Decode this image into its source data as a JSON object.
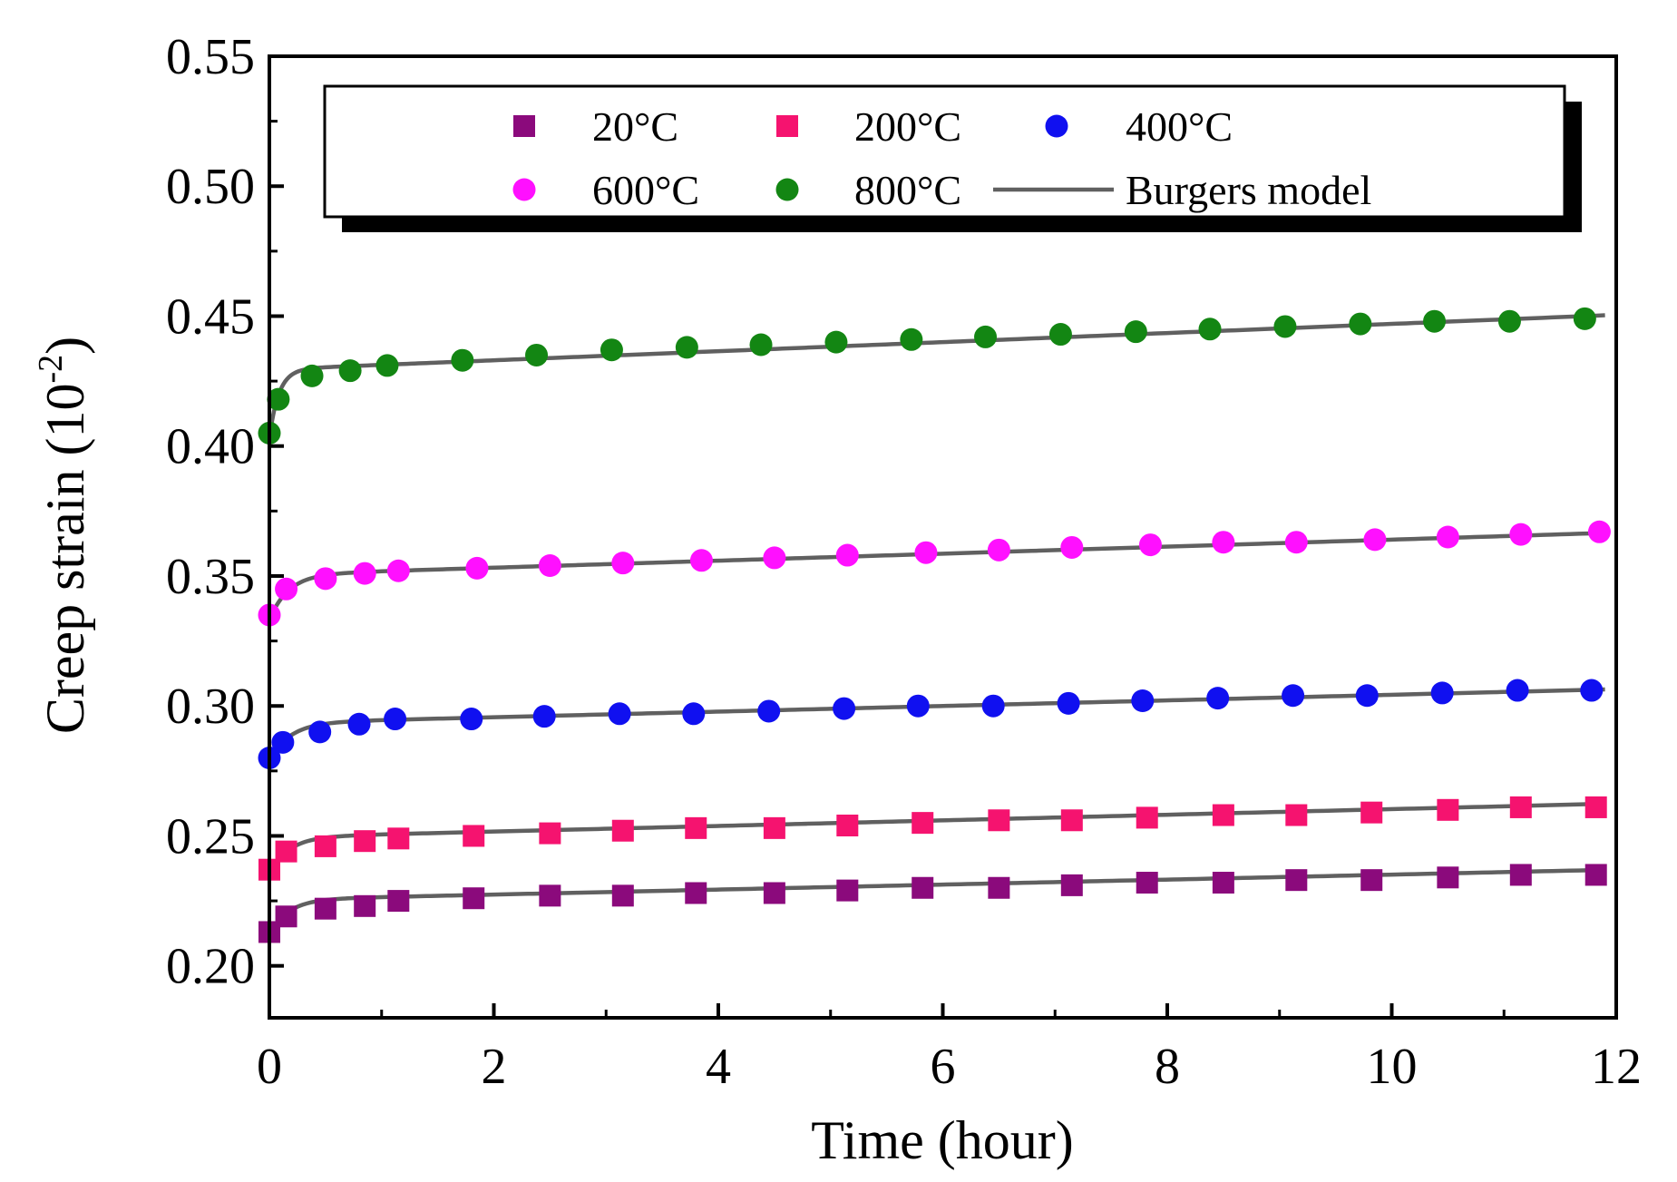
{
  "chart_data": {
    "type": "scatter",
    "title": "",
    "xlabel": "Time (hour)",
    "ylabel_main": "Creep strain (10",
    "ylabel_sup": "-2",
    "ylabel_close": ")",
    "xlim": [
      0,
      12
    ],
    "ylim": [
      0.18,
      0.55
    ],
    "xticks": [
      0,
      2,
      4,
      6,
      8,
      10,
      12
    ],
    "xtick_labels": [
      "0",
      "2",
      "4",
      "6",
      "8",
      "10",
      "12"
    ],
    "yticks": [
      0.2,
      0.25,
      0.3,
      0.35,
      0.4,
      0.45,
      0.5,
      0.55
    ],
    "ytick_labels": [
      "0.20",
      "0.25",
      "0.30",
      "0.35",
      "0.40",
      "0.45",
      "0.50",
      "0.55"
    ],
    "legend_position": "top",
    "fit_label": "Burgers model",
    "fit_color": "#606060",
    "series": [
      {
        "name": "20°C",
        "marker": "square",
        "color": "#8b0a7c",
        "x": [
          0.0,
          0.15,
          0.5,
          0.85,
          1.15,
          1.82,
          2.5,
          3.15,
          3.8,
          4.5,
          5.15,
          5.82,
          6.5,
          7.15,
          7.82,
          8.5,
          9.15,
          9.82,
          10.5,
          11.15,
          11.82
        ],
        "y": [
          0.213,
          0.219,
          0.222,
          0.223,
          0.225,
          0.226,
          0.227,
          0.227,
          0.228,
          0.228,
          0.229,
          0.23,
          0.23,
          0.231,
          0.232,
          0.232,
          0.233,
          0.233,
          0.234,
          0.235,
          0.235
        ],
        "fit": {
          "e0": 0.212,
          "a": 0.0135,
          "k": 6,
          "b": 0.00096
        }
      },
      {
        "name": "200°C",
        "marker": "square",
        "color": "#f5136f",
        "x": [
          0.0,
          0.15,
          0.5,
          0.85,
          1.15,
          1.82,
          2.5,
          3.15,
          3.8,
          4.5,
          5.15,
          5.82,
          6.5,
          7.15,
          7.82,
          8.5,
          9.15,
          9.82,
          10.5,
          11.15,
          11.82
        ],
        "y": [
          0.237,
          0.244,
          0.246,
          0.248,
          0.249,
          0.25,
          0.251,
          0.252,
          0.253,
          0.253,
          0.254,
          0.255,
          0.256,
          0.256,
          0.257,
          0.258,
          0.258,
          0.259,
          0.26,
          0.261,
          0.261
        ],
        "fit": {
          "e0": 0.235,
          "a": 0.0145,
          "k": 6,
          "b": 0.00108
        }
      },
      {
        "name": "400°C",
        "marker": "circle",
        "color": "#1010f0",
        "x": [
          0.0,
          0.12,
          0.45,
          0.8,
          1.12,
          1.8,
          2.45,
          3.12,
          3.78,
          4.45,
          5.12,
          5.78,
          6.45,
          7.12,
          7.78,
          8.45,
          9.12,
          9.78,
          10.45,
          11.12,
          11.78
        ],
        "y": [
          0.28,
          0.286,
          0.29,
          0.293,
          0.295,
          0.295,
          0.296,
          0.297,
          0.297,
          0.298,
          0.299,
          0.3,
          0.3,
          0.301,
          0.302,
          0.303,
          0.304,
          0.304,
          0.305,
          0.306,
          0.306
        ],
        "fit": {
          "e0": 0.279,
          "a": 0.0145,
          "k": 5.5,
          "b": 0.00108
        }
      },
      {
        "name": "600°C",
        "marker": "circle",
        "color": "#ff10ff",
        "x": [
          0.0,
          0.15,
          0.5,
          0.85,
          1.15,
          1.85,
          2.5,
          3.15,
          3.85,
          4.5,
          5.15,
          5.85,
          6.5,
          7.15,
          7.85,
          8.5,
          9.15,
          9.85,
          10.5,
          11.15,
          11.85
        ],
        "y": [
          0.335,
          0.345,
          0.349,
          0.351,
          0.352,
          0.353,
          0.354,
          0.355,
          0.356,
          0.357,
          0.358,
          0.359,
          0.36,
          0.361,
          0.362,
          0.363,
          0.363,
          0.364,
          0.365,
          0.366,
          0.367
        ],
        "fit": {
          "e0": 0.333,
          "a": 0.0175,
          "k": 6,
          "b": 0.00135
        }
      },
      {
        "name": "800°C",
        "marker": "circle",
        "color": "#138613",
        "x": [
          0.0,
          0.08,
          0.38,
          0.72,
          1.05,
          1.72,
          2.38,
          3.05,
          3.72,
          4.38,
          5.05,
          5.72,
          6.38,
          7.05,
          7.72,
          8.38,
          9.05,
          9.72,
          10.38,
          11.05,
          11.72
        ],
        "y": [
          0.405,
          0.418,
          0.427,
          0.429,
          0.431,
          0.433,
          0.435,
          0.437,
          0.438,
          0.439,
          0.44,
          0.441,
          0.442,
          0.443,
          0.444,
          0.445,
          0.446,
          0.447,
          0.448,
          0.448,
          0.449
        ],
        "fit": {
          "e0": 0.403,
          "a": 0.0265,
          "k": 12,
          "b": 0.00175
        }
      }
    ]
  }
}
